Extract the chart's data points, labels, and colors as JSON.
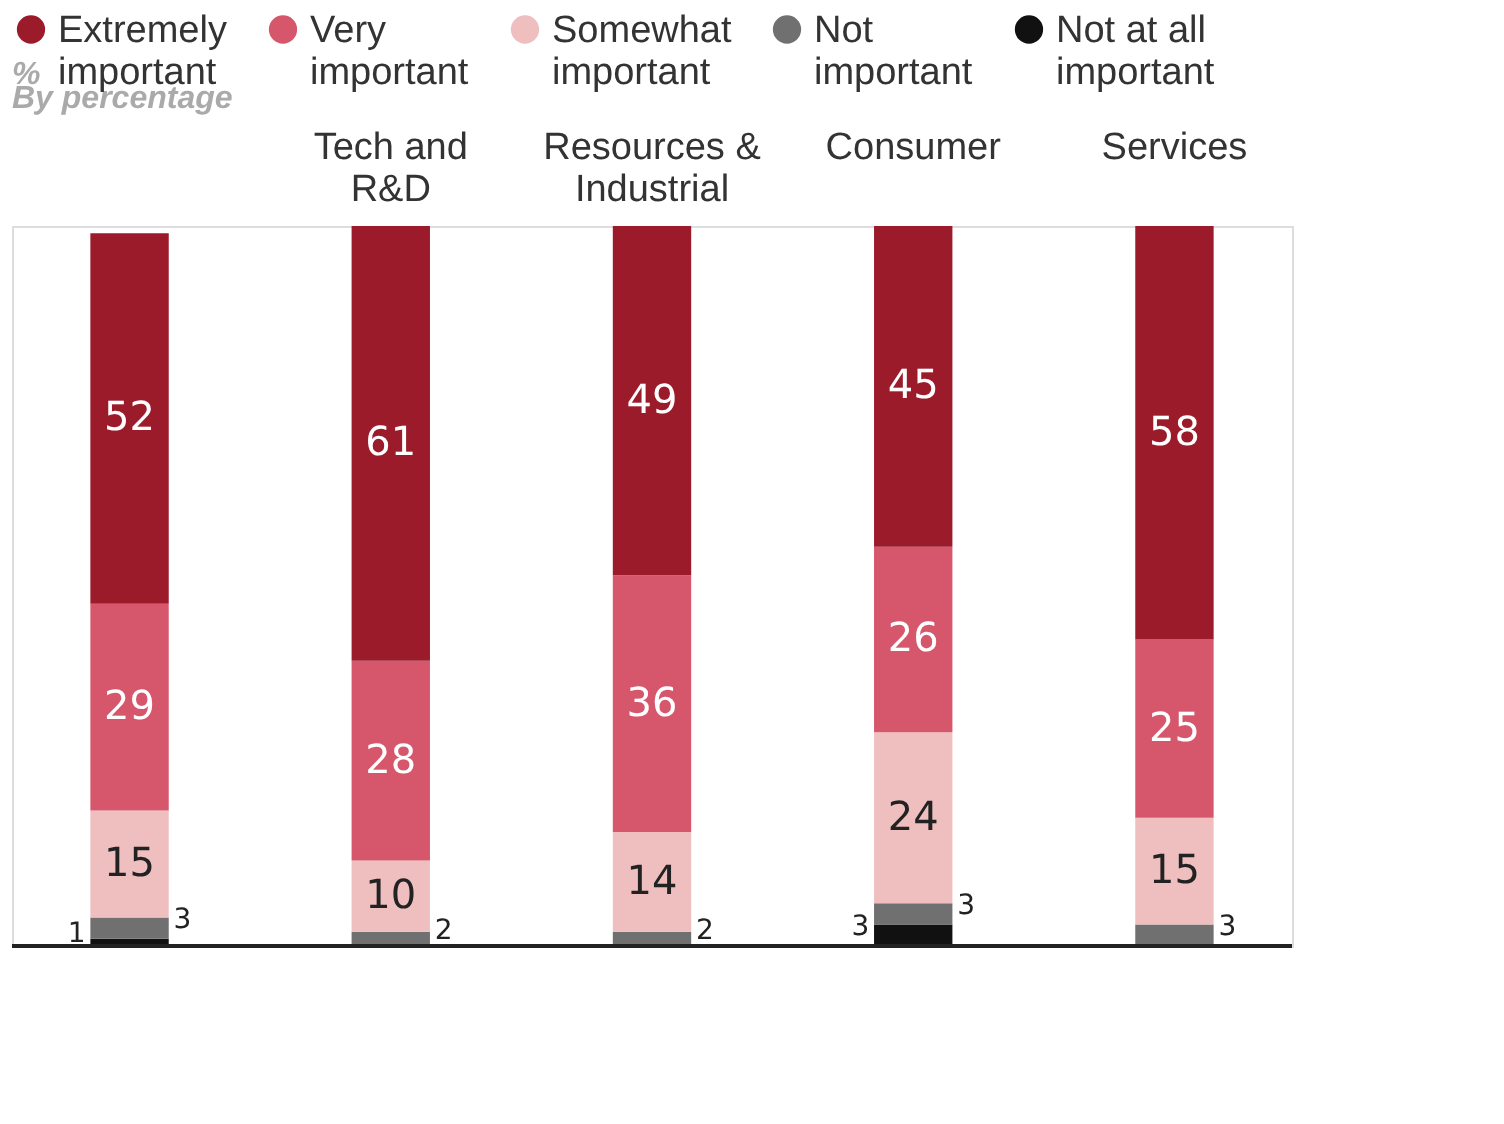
{
  "chart_data": {
    "type": "bar",
    "stacked": true,
    "categories": [
      null,
      "Tech and R&D",
      "Resources & Industrial",
      "Consumer",
      "Services"
    ],
    "series": [
      {
        "name": "Not at all important",
        "color": "#111111",
        "values": [
          1,
          null,
          null,
          3,
          null
        ]
      },
      {
        "name": "Not important",
        "color": "#707070",
        "values": [
          3,
          2,
          2,
          3,
          3
        ]
      },
      {
        "name": "Somewhat important",
        "color": "#efbfc0",
        "values": [
          15,
          10,
          14,
          24,
          15
        ]
      },
      {
        "name": "Very important",
        "color": "#d6566b",
        "values": [
          29,
          28,
          36,
          26,
          25
        ]
      },
      {
        "name": "Extremely important",
        "color": "#9b1b2a",
        "values": [
          52,
          61,
          49,
          45,
          58
        ]
      }
    ],
    "data_labels": true,
    "ylim": [
      0,
      101
    ],
    "legend": "top",
    "tick_labels": "x",
    "annotations": [
      "%",
      "By percentage"
    ]
  }
}
